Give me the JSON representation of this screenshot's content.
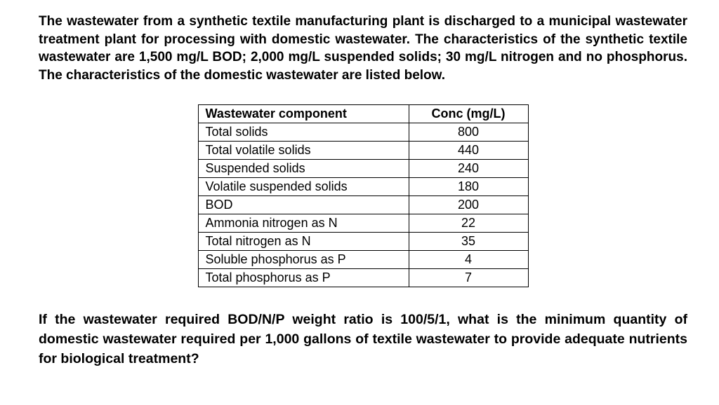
{
  "problem": {
    "intro": "The wastewater from a synthetic textile manufacturing plant is discharged to a municipal wastewater treatment plant for processing with domestic wastewater. The characteristics of the synthetic textile wastewater are 1,500 mg/L BOD; 2,000 mg/L suspended solids; 30 mg/L nitrogen and no phosphorus. The characteristics of the domestic wastewater are listed below."
  },
  "table": {
    "headers": {
      "component": "Wastewater component",
      "conc": "Conc (mg/L)"
    },
    "rows": [
      {
        "component": "Total solids",
        "conc": "800"
      },
      {
        "component": "Total volatile solids",
        "conc": "440"
      },
      {
        "component": "Suspended solids",
        "conc": "240"
      },
      {
        "component": "Volatile suspended solids",
        "conc": "180"
      },
      {
        "component": "BOD",
        "conc": "200"
      },
      {
        "component": "Ammonia nitrogen as N",
        "conc": "22"
      },
      {
        "component": "Total nitrogen as N",
        "conc": "35"
      },
      {
        "component": "Soluble phosphorus as P",
        "conc": "4"
      },
      {
        "component": "Total phosphorus as P",
        "conc": "7"
      }
    ]
  },
  "question": {
    "text": "If the wastewater required BOD/N/P weight ratio is 100/5/1, what is the minimum quantity of domestic wastewater required per 1,000 gallons of textile wastewater to provide adequate nutrients for biological treatment?"
  },
  "styling": {
    "background_color": "#ffffff",
    "text_color": "#000000",
    "border_color": "#000000",
    "font_family": "Arial",
    "problem_fontsize": 19,
    "table_fontsize": 18,
    "question_fontsize": 19.5,
    "col_component_width": 300,
    "col_conc_width": 170
  }
}
